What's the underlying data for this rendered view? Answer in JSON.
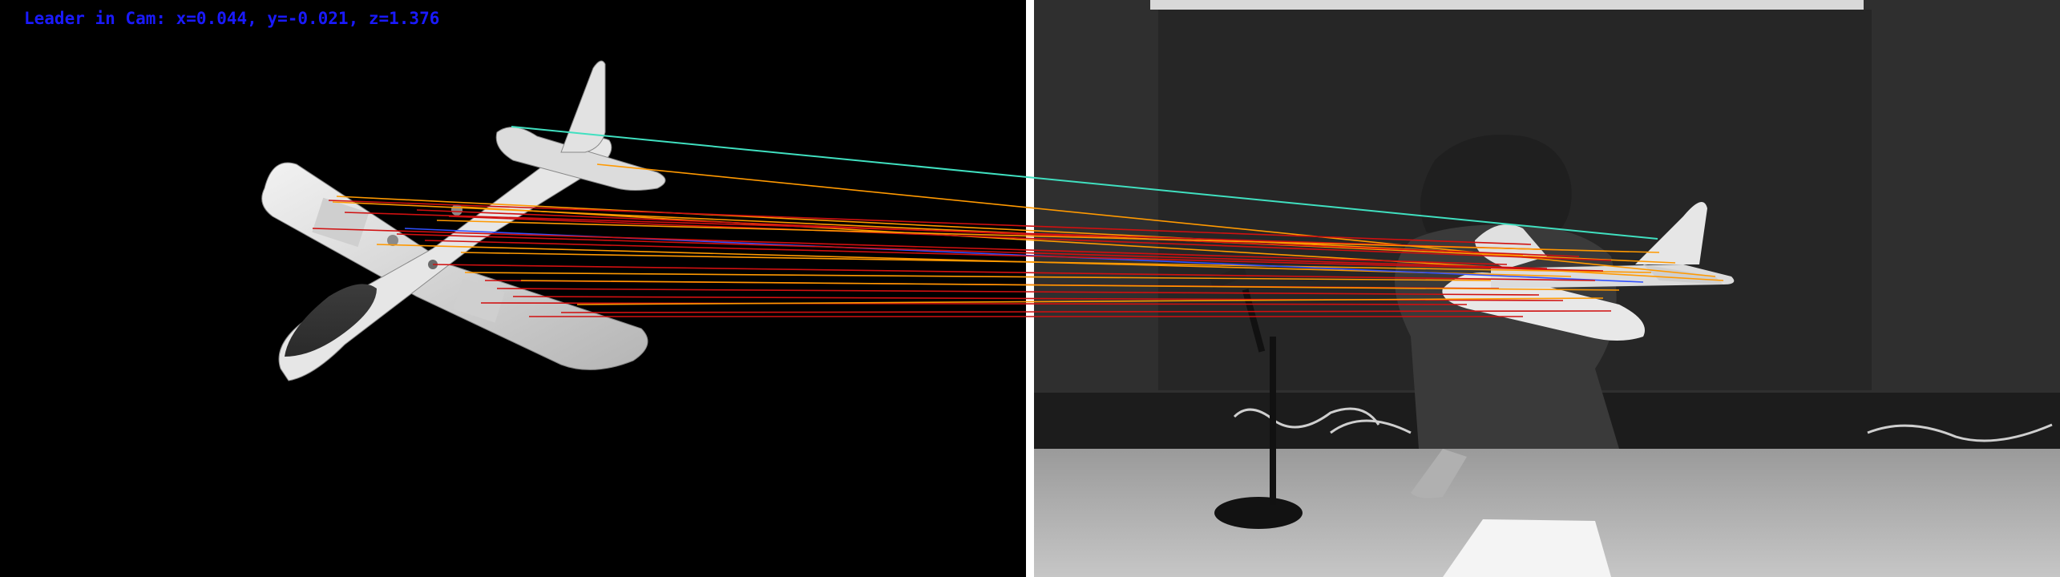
{
  "overlay": {
    "leader_label": "Leader in Cam: x=0.044, y=-0.021, z=1.376",
    "color": "#1a1aff"
  },
  "panels": {
    "left": "template-image-airplane",
    "right": "camera-frame-person-holding-airplane"
  },
  "colors": {
    "background_left": "#000000",
    "divider": "#ffffff",
    "match_cyan": "#40e0c0",
    "match_orange": "#ff9900",
    "match_red": "#d01010",
    "match_blue": "#3050ff"
  }
}
